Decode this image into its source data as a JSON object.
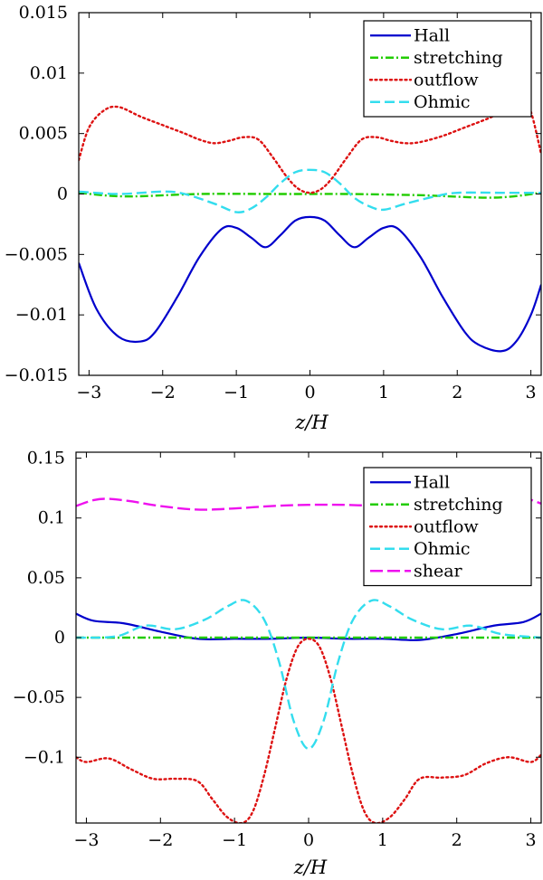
{
  "chart_data": [
    {
      "type": "line",
      "title": "",
      "xlabel": "z/H",
      "ylabel": "",
      "xlim": [
        -3.14,
        3.14
      ],
      "ylim": [
        -0.015,
        0.015
      ],
      "xticks": [
        -3,
        -2,
        -1,
        0,
        1,
        2,
        3
      ],
      "xtick_labels": [
        "−3",
        "−2",
        "−1",
        "0",
        "1",
        "2",
        "3"
      ],
      "yticks": [
        -0.015,
        -0.01,
        -0.005,
        0,
        0.005,
        0.01,
        0.015
      ],
      "ytick_labels": [
        "−0.015",
        "−0.01",
        "−0.005",
        "0",
        "0.005",
        "0.01",
        "0.015"
      ],
      "legend_position": "top-right",
      "series": [
        {
          "name": "Hall",
          "color": "#0000cc",
          "style": "solid",
          "x": [
            -3.14,
            -2.9,
            -2.6,
            -2.3,
            -2.1,
            -1.8,
            -1.5,
            -1.2,
            -1.0,
            -0.8,
            -0.6,
            -0.4,
            -0.2,
            0.0,
            0.2,
            0.4,
            0.6,
            0.8,
            1.0,
            1.2,
            1.5,
            1.8,
            2.1,
            2.3,
            2.6,
            2.8,
            3.0,
            3.14
          ],
          "y": [
            -0.0057,
            -0.0095,
            -0.0118,
            -0.0122,
            -0.0114,
            -0.0085,
            -0.0052,
            -0.0029,
            -0.0028,
            -0.0036,
            -0.0044,
            -0.0034,
            -0.0022,
            -0.0019,
            -0.0022,
            -0.0034,
            -0.0044,
            -0.0036,
            -0.0028,
            -0.0029,
            -0.0052,
            -0.0085,
            -0.0114,
            -0.0125,
            -0.013,
            -0.0122,
            -0.01,
            -0.0075
          ]
        },
        {
          "name": "stretching",
          "color": "#22cc00",
          "style": "dashdot",
          "x": [
            -3.14,
            -2.5,
            -1.5,
            -0.5,
            0.0,
            0.5,
            1.5,
            2.5,
            3.14
          ],
          "y": [
            0.0001,
            -0.0002,
            0.0,
            0.0,
            0.0,
            0.0,
            -0.0001,
            -0.0003,
            0.0001
          ]
        },
        {
          "name": "outflow",
          "color": "#dd1111",
          "style": "dotted",
          "x": [
            -3.14,
            -3.0,
            -2.8,
            -2.6,
            -2.3,
            -2.0,
            -1.7,
            -1.5,
            -1.3,
            -1.1,
            -0.9,
            -0.7,
            -0.5,
            -0.3,
            -0.15,
            0.0,
            0.15,
            0.3,
            0.5,
            0.7,
            0.9,
            1.1,
            1.3,
            1.5,
            1.8,
            2.1,
            2.4,
            2.7,
            2.9,
            3.0,
            3.14
          ],
          "y": [
            0.0028,
            0.0055,
            0.0069,
            0.0072,
            0.0064,
            0.0057,
            0.005,
            0.0045,
            0.0042,
            0.0044,
            0.0047,
            0.0045,
            0.003,
            0.0013,
            0.0004,
            0.0001,
            0.0004,
            0.0013,
            0.003,
            0.0045,
            0.0047,
            0.0044,
            0.0042,
            0.0043,
            0.0048,
            0.0055,
            0.0062,
            0.007,
            0.0072,
            0.0068,
            0.0033
          ]
        },
        {
          "name": "Ohmic",
          "color": "#33ddee",
          "style": "dashed",
          "x": [
            -3.14,
            -2.6,
            -2.0,
            -1.7,
            -1.3,
            -1.0,
            -0.8,
            -0.6,
            -0.4,
            -0.2,
            0.0,
            0.2,
            0.4,
            0.6,
            0.8,
            1.0,
            1.3,
            1.7,
            2.0,
            2.6,
            3.14
          ],
          "y": [
            0.0002,
            0.0,
            0.0002,
            0.0,
            -0.0008,
            -0.0015,
            -0.0012,
            -0.0003,
            0.0009,
            0.0018,
            0.002,
            0.0018,
            0.0009,
            -0.0003,
            -0.001,
            -0.0013,
            -0.0008,
            -0.0002,
            0.0001,
            0.0001,
            0.0001
          ]
        }
      ]
    },
    {
      "type": "line",
      "title": "",
      "xlabel": "z/H",
      "ylabel": "",
      "xlim": [
        -3.14,
        3.14
      ],
      "ylim": [
        -0.155,
        0.155
      ],
      "xticks": [
        -3,
        -2,
        -1,
        0,
        1,
        2,
        3
      ],
      "xtick_labels": [
        "−3",
        "−2",
        "−1",
        "0",
        "1",
        "2",
        "3"
      ],
      "yticks": [
        -0.1,
        -0.05,
        0,
        0.05,
        0.1,
        0.15
      ],
      "ytick_labels": [
        "−0.1",
        "−0.05",
        "0",
        "0.05",
        "0.1",
        "0.15"
      ],
      "legend_position": "top-right",
      "series": [
        {
          "name": "Hall",
          "color": "#0000cc",
          "style": "solid",
          "x": [
            -3.14,
            -2.9,
            -2.5,
            -2.0,
            -1.5,
            -1.0,
            -0.5,
            0.0,
            0.5,
            1.0,
            1.5,
            2.0,
            2.5,
            2.9,
            3.14
          ],
          "y": [
            0.02,
            0.014,
            0.012,
            0.005,
            -0.001,
            -0.001,
            -0.001,
            0.0,
            -0.001,
            -0.001,
            -0.002,
            0.003,
            0.01,
            0.013,
            0.02
          ]
        },
        {
          "name": "stretching",
          "color": "#22cc00",
          "style": "dashdot",
          "x": [
            -3.14,
            -1.5,
            0.0,
            1.5,
            3.14
          ],
          "y": [
            0.0,
            0.0,
            0.0,
            0.0,
            0.0
          ]
        },
        {
          "name": "outflow",
          "color": "#dd1111",
          "style": "dotted",
          "x": [
            -3.14,
            -3.0,
            -2.7,
            -2.4,
            -2.1,
            -1.8,
            -1.5,
            -1.3,
            -1.1,
            -0.9,
            -0.75,
            -0.6,
            -0.45,
            -0.3,
            -0.15,
            0.0,
            0.15,
            0.3,
            0.45,
            0.6,
            0.75,
            0.9,
            1.1,
            1.3,
            1.5,
            1.8,
            2.1,
            2.4,
            2.7,
            3.0,
            3.14
          ],
          "y": [
            -0.1,
            -0.104,
            -0.101,
            -0.11,
            -0.118,
            -0.118,
            -0.12,
            -0.135,
            -0.15,
            -0.155,
            -0.145,
            -0.115,
            -0.075,
            -0.035,
            -0.008,
            -0.001,
            -0.008,
            -0.035,
            -0.075,
            -0.115,
            -0.145,
            -0.155,
            -0.15,
            -0.135,
            -0.118,
            -0.117,
            -0.115,
            -0.105,
            -0.1,
            -0.104,
            -0.098
          ]
        },
        {
          "name": "Ohmic",
          "color": "#33ddee",
          "style": "dashed",
          "x": [
            -3.14,
            -2.6,
            -2.2,
            -1.8,
            -1.4,
            -1.1,
            -0.85,
            -0.6,
            -0.4,
            -0.2,
            0.0,
            0.2,
            0.4,
            0.6,
            0.85,
            1.1,
            1.4,
            1.8,
            2.2,
            2.6,
            3.14
          ],
          "y": [
            0.0,
            0.001,
            0.01,
            0.007,
            0.015,
            0.026,
            0.031,
            0.015,
            -0.02,
            -0.07,
            -0.093,
            -0.07,
            -0.02,
            0.015,
            0.031,
            0.026,
            0.015,
            0.007,
            0.01,
            0.003,
            0.0
          ]
        },
        {
          "name": "shear",
          "color": "#ee11ee",
          "style": "longdash",
          "x": [
            -3.14,
            -2.9,
            -2.7,
            -2.4,
            -2.0,
            -1.5,
            -1.0,
            -0.5,
            0.0,
            0.5,
            1.0,
            1.5,
            2.0,
            2.4,
            2.7,
            2.9,
            3.14
          ],
          "y": [
            0.11,
            0.115,
            0.116,
            0.114,
            0.11,
            0.107,
            0.108,
            0.11,
            0.111,
            0.111,
            0.11,
            0.11,
            0.111,
            0.113,
            0.116,
            0.117,
            0.112
          ]
        }
      ]
    }
  ]
}
